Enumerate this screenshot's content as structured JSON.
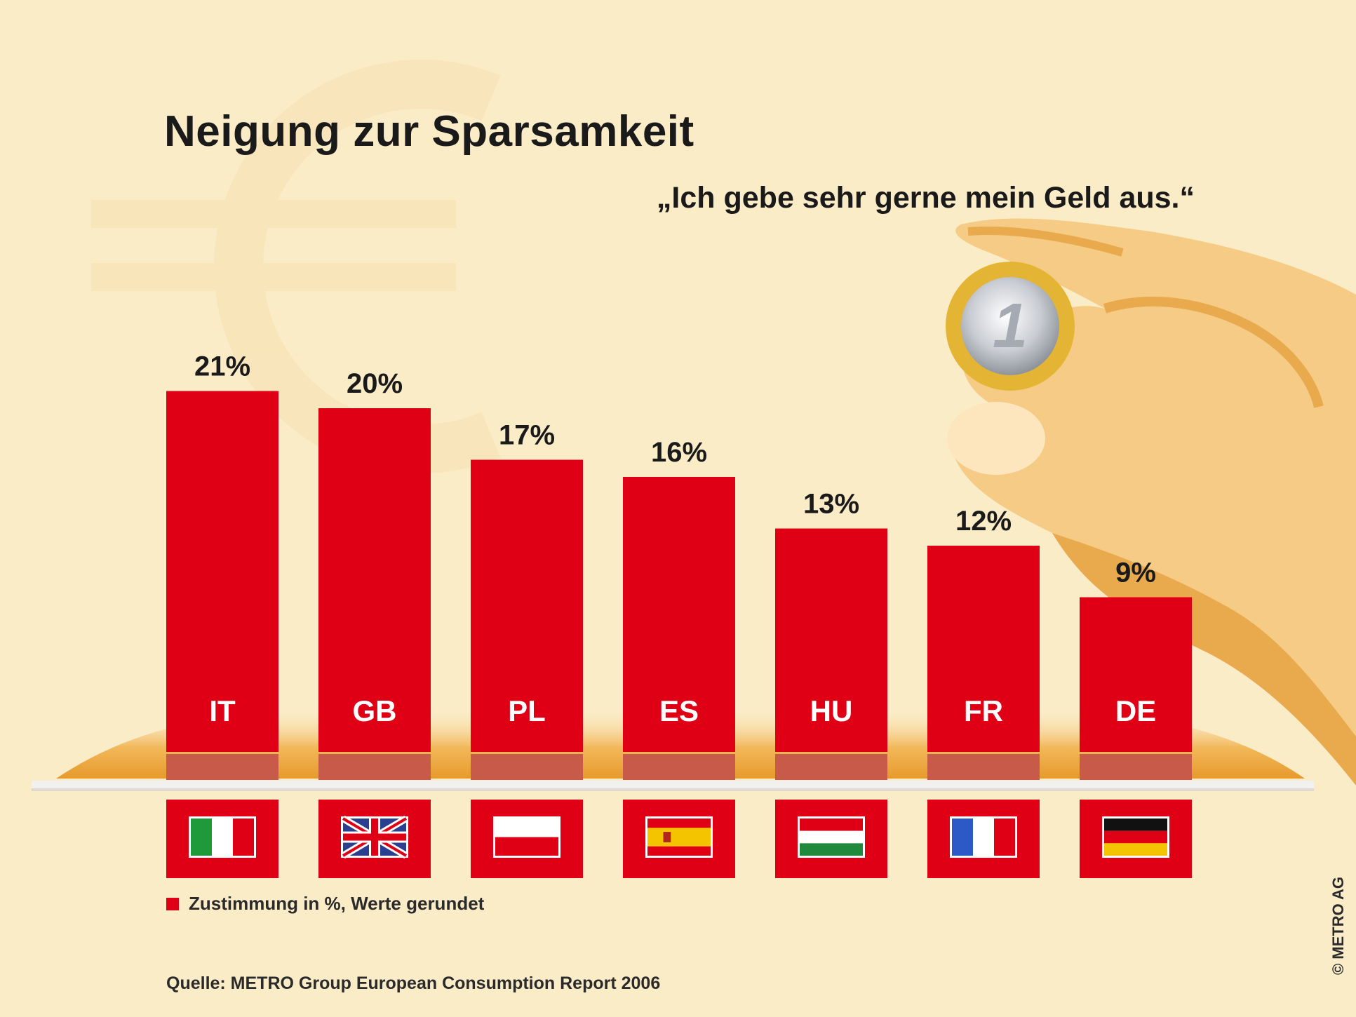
{
  "title": "Neigung zur Sparsamkeit",
  "subtitle": "„Ich gebe sehr gerne mein Geld aus.“",
  "legend_label": "Zustimmung in %, Werte gerundet",
  "source": "Quelle: METRO Group European Consumption Report 2006",
  "copyright": "© METRO AG",
  "colors": {
    "bar": "#df0015",
    "background": "#fbecc8",
    "floor": "#f0b04a",
    "hand": "#f3c57a"
  },
  "chart_data": {
    "type": "bar",
    "title": "Neigung zur Sparsamkeit",
    "subtitle": "„Ich gebe sehr gerne mein Geld aus.“",
    "categories": [
      "IT",
      "GB",
      "PL",
      "ES",
      "HU",
      "FR",
      "DE"
    ],
    "values": [
      21,
      20,
      17,
      16,
      13,
      12,
      9
    ],
    "value_labels": [
      "21%",
      "20%",
      "17%",
      "16%",
      "13%",
      "12%",
      "9%"
    ],
    "flags": [
      "italy-flag-icon",
      "uk-flag-icon",
      "poland-flag-icon",
      "spain-flag-icon",
      "hungary-flag-icon",
      "france-flag-icon",
      "germany-flag-icon"
    ],
    "unit": "%",
    "legend": [
      {
        "name": "Zustimmung in %, Werte gerundet",
        "color": "#df0015"
      }
    ],
    "grid": false
  }
}
